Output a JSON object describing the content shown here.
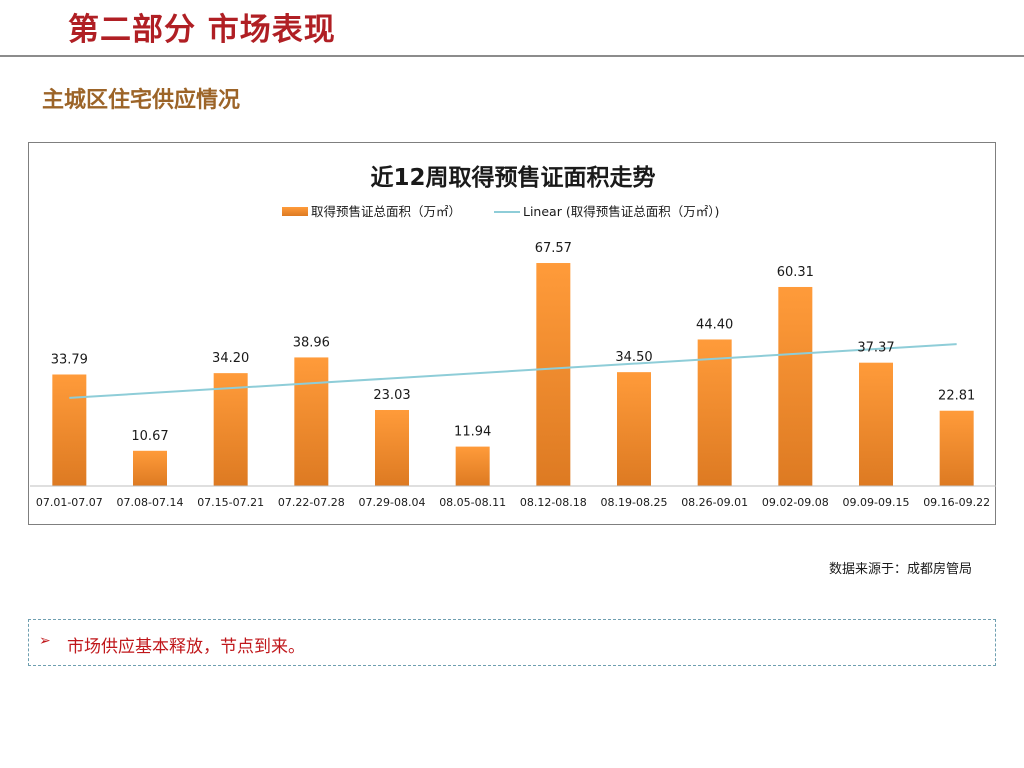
{
  "slide": {
    "title": "第二部分 市场表现",
    "section_title": "主城区住宅供应情况",
    "source_note": "数据来源于：成都房管局",
    "callout": {
      "arrow": "➢",
      "text": "市场供应基本释放，节点到来。"
    }
  },
  "colors": {
    "title": "#b01f24",
    "section_title": "#9c6428",
    "bar_top": "#ff9b3a",
    "bar_bottom": "#dd7a22",
    "trendline": "#8ecdd8",
    "callout_text": "#c0171b",
    "callout_border": "#6f9fb0"
  },
  "chart_data": {
    "type": "bar",
    "title": "近12周取得预售证面积走势",
    "categories": [
      "07.01-07.07",
      "07.08-07.14",
      "07.15-07.21",
      "07.22-07.28",
      "07.29-08.04",
      "08.05-08.11",
      "08.12-08.18",
      "08.19-08.25",
      "08.26-09.01",
      "09.02-09.08",
      "09.09-09.15",
      "09.16-09.22"
    ],
    "series": [
      {
        "name": "取得预售证总面积（万㎡）",
        "values": [
          33.79,
          10.67,
          34.2,
          38.96,
          23.03,
          11.94,
          67.57,
          34.5,
          44.4,
          60.31,
          37.37,
          22.81
        ],
        "labels": [
          "33.79",
          "10.67",
          "34.20",
          "38.96",
          "23.03",
          "11.94",
          "67.57",
          "34.50",
          "44.40",
          "60.31",
          "37.37",
          "22.81"
        ]
      }
    ],
    "trendline": {
      "name": "Linear (取得预售证总面积（万㎡）)",
      "type": "linear",
      "start": 26.7,
      "end": 43.0
    },
    "ylim": [
      0,
      70
    ],
    "xlabel": "",
    "ylabel": "",
    "legend_position": "top",
    "grid": false
  }
}
